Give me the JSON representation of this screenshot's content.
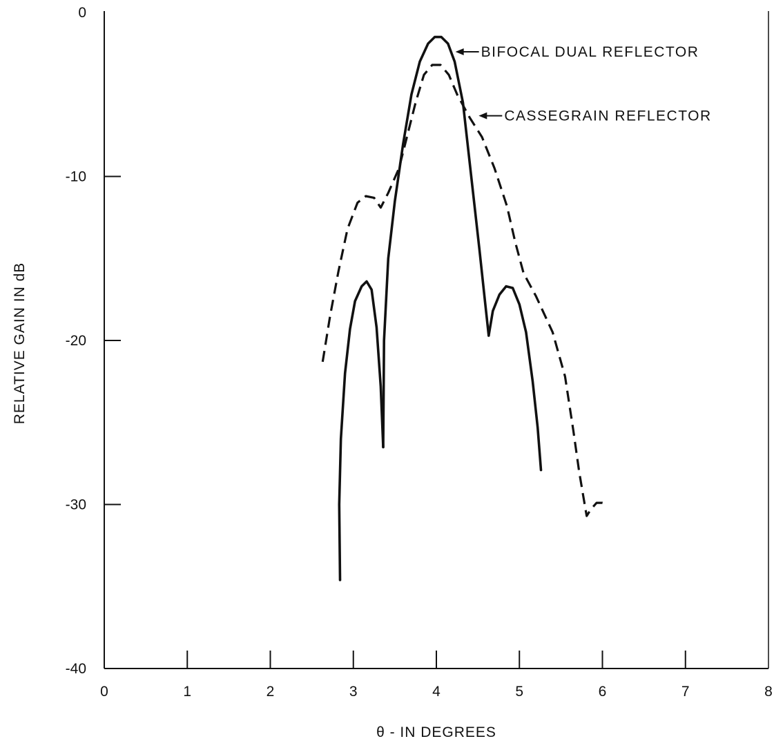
{
  "chart_data": {
    "type": "line",
    "title": "",
    "xlabel": "θ - IN DEGREES",
    "ylabel": "RELATIVE GAIN IN dB",
    "xlim": [
      0,
      8
    ],
    "ylim": [
      -40,
      0
    ],
    "grid": false,
    "x_ticks": [
      0,
      1,
      2,
      3,
      4,
      5,
      6,
      7,
      8
    ],
    "x_tick_labels": [
      "0",
      "1",
      "2",
      "3",
      "4",
      "5",
      "6",
      "7",
      "8"
    ],
    "y_ticks": [
      0,
      -10,
      -20,
      -30,
      -40
    ],
    "y_tick_labels": [
      "0",
      "-10",
      "-20",
      "-30",
      "-40"
    ],
    "series": [
      {
        "id": "bifocal",
        "style": "solid",
        "color": "#111111",
        "segments": [
          [
            [
              2.84,
              -34.6
            ],
            [
              2.83,
              -30.0
            ],
            [
              2.85,
              -26.0
            ],
            [
              2.9,
              -22.0
            ],
            [
              2.96,
              -19.3
            ],
            [
              3.02,
              -17.6
            ],
            [
              3.1,
              -16.7
            ],
            [
              3.16,
              -16.4
            ],
            [
              3.22,
              -16.9
            ],
            [
              3.28,
              -19.2
            ],
            [
              3.33,
              -22.8
            ],
            [
              3.36,
              -26.5
            ]
          ],
          [
            [
              3.36,
              -26.5
            ],
            [
              3.37,
              -20.0
            ],
            [
              3.42,
              -15.0
            ],
            [
              3.5,
              -11.5
            ],
            [
              3.6,
              -8.0
            ],
            [
              3.7,
              -5.0
            ],
            [
              3.8,
              -3.0
            ],
            [
              3.9,
              -1.9
            ],
            [
              3.98,
              -1.5
            ],
            [
              4.06,
              -1.5
            ],
            [
              4.14,
              -1.9
            ],
            [
              4.22,
              -3.0
            ],
            [
              4.32,
              -5.5
            ],
            [
              4.42,
              -10.0
            ],
            [
              4.52,
              -14.5
            ],
            [
              4.59,
              -17.8
            ],
            [
              4.63,
              -19.7
            ]
          ],
          [
            [
              4.63,
              -19.7
            ],
            [
              4.68,
              -18.2
            ],
            [
              4.76,
              -17.2
            ],
            [
              4.84,
              -16.7
            ],
            [
              4.92,
              -16.8
            ],
            [
              5.0,
              -17.8
            ],
            [
              5.08,
              -19.5
            ],
            [
              5.16,
              -22.5
            ],
            [
              5.22,
              -25.3
            ],
            [
              5.26,
              -27.9
            ]
          ]
        ]
      },
      {
        "id": "cassegrain",
        "style": "dashed",
        "color": "#111111",
        "segments": [
          [
            [
              2.63,
              -21.3
            ],
            [
              2.72,
              -18.5
            ],
            [
              2.82,
              -15.8
            ],
            [
              2.93,
              -13.2
            ],
            [
              3.05,
              -11.6
            ],
            [
              3.15,
              -11.2
            ],
            [
              3.25,
              -11.3
            ],
            [
              3.33,
              -11.9
            ],
            [
              3.42,
              -11.0
            ],
            [
              3.55,
              -9.5
            ],
            [
              3.65,
              -7.5
            ],
            [
              3.75,
              -5.5
            ],
            [
              3.85,
              -3.8
            ],
            [
              3.95,
              -3.2
            ],
            [
              4.05,
              -3.2
            ],
            [
              4.15,
              -3.8
            ],
            [
              4.25,
              -5.0
            ],
            [
              4.4,
              -6.4
            ],
            [
              4.55,
              -7.6
            ],
            [
              4.7,
              -9.5
            ],
            [
              4.85,
              -11.8
            ],
            [
              4.95,
              -14.0
            ],
            [
              5.05,
              -15.9
            ],
            [
              5.2,
              -17.3
            ],
            [
              5.4,
              -19.5
            ],
            [
              5.55,
              -22.2
            ],
            [
              5.65,
              -25.5
            ],
            [
              5.72,
              -28.0
            ],
            [
              5.77,
              -29.5
            ],
            [
              5.81,
              -30.7
            ],
            [
              5.86,
              -30.3
            ],
            [
              5.93,
              -29.9
            ],
            [
              6.0,
              -29.9
            ],
            [
              6.06,
              -30.0
            ]
          ]
        ]
      }
    ],
    "annotations": [
      {
        "text": "BIFOCAL DUAL REFLECTOR",
        "target": "bifocal",
        "at_x": 4.18,
        "at_y": -2.4
      },
      {
        "text": "CASSEGRAIN REFLECTOR",
        "target": "cassegrain",
        "at_x": 4.46,
        "at_y": -6.3
      }
    ]
  }
}
